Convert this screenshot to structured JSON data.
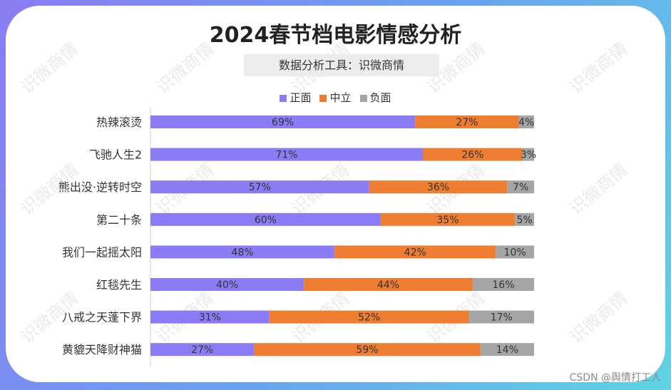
{
  "title": "2024春节档电影情感分析",
  "subtitle": "数据分析工具：识微商情",
  "credit": "CSDN @舆情打工人",
  "watermark": "识微商情",
  "chart_data": {
    "type": "bar",
    "orientation": "horizontal",
    "stacked": true,
    "percent_stacked": true,
    "categories": [
      "热辣滚烫",
      "飞驰人生2",
      "熊出没·逆转时空",
      "第二十条",
      "我们一起摇太阳",
      "红毯先生",
      "八戒之天蓬下界",
      "黄貔天降财神猫"
    ],
    "series": [
      {
        "name": "正面",
        "color": "#8b7cf6",
        "values": [
          69,
          71,
          57,
          60,
          48,
          40,
          31,
          27
        ]
      },
      {
        "name": "中立",
        "color": "#ee7d31",
        "values": [
          27,
          26,
          36,
          35,
          42,
          44,
          52,
          59
        ]
      },
      {
        "name": "负面",
        "color": "#a5a5a5",
        "values": [
          4,
          3,
          7,
          5,
          10,
          16,
          17,
          14
        ]
      }
    ],
    "value_suffix": "%",
    "legend_position": "top",
    "grid": false,
    "xlim": [
      0,
      100
    ]
  }
}
